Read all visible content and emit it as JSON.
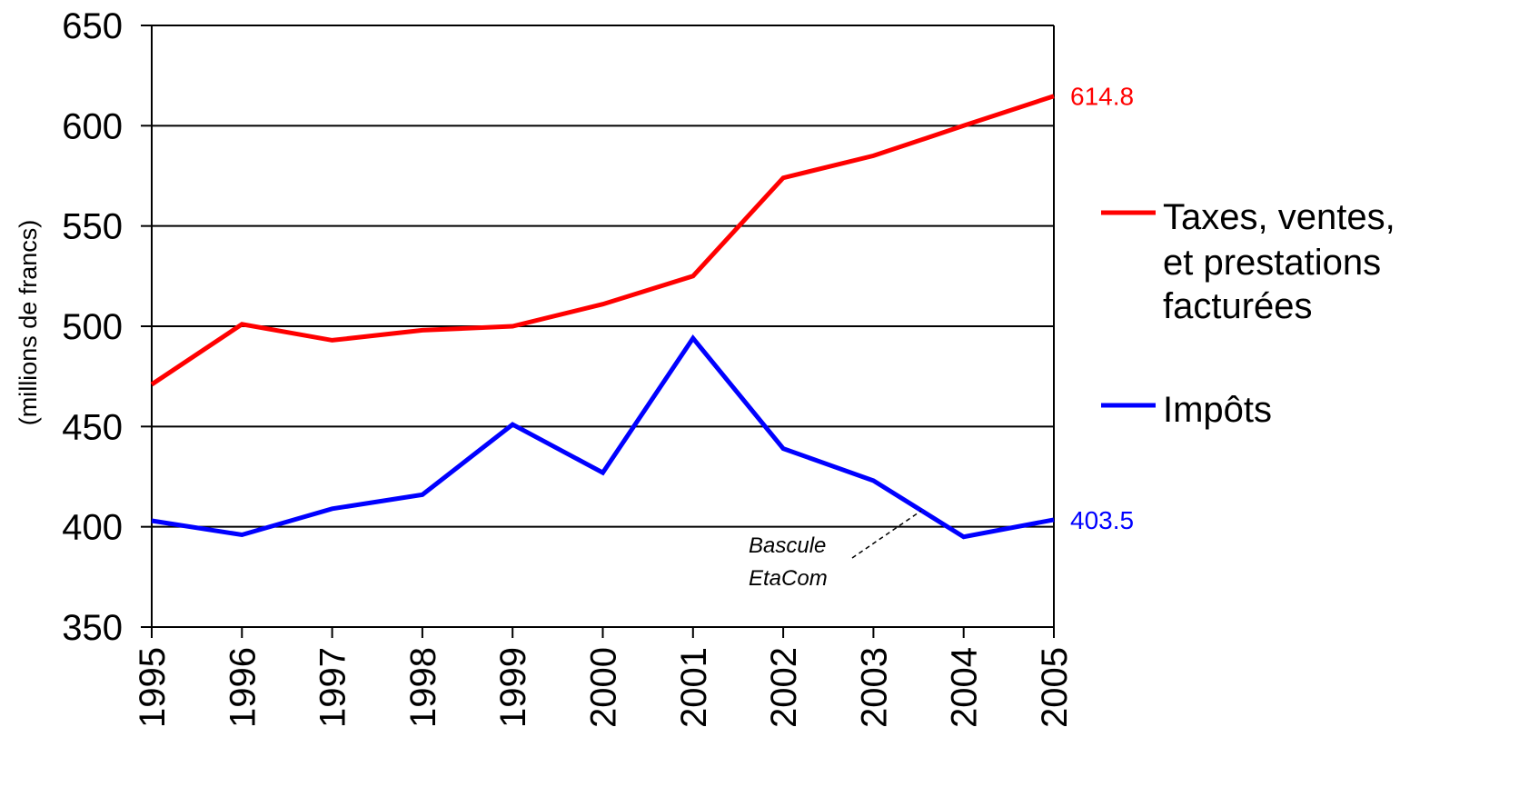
{
  "chart_data": {
    "type": "line",
    "x": [
      "1995",
      "1996",
      "1997",
      "1998",
      "1999",
      "2000",
      "2001",
      "2002",
      "2003",
      "2004",
      "2005"
    ],
    "ylabel": "(millions de francs)",
    "ylim": [
      350,
      650
    ],
    "yticks": [
      350,
      400,
      450,
      500,
      550,
      600,
      650
    ],
    "grid": true,
    "legend_position": "right",
    "series": [
      {
        "name": [
          "Taxes, ventes,",
          "et prestations",
          "facturées"
        ],
        "color": "#ff0000",
        "values": [
          471,
          501,
          493,
          498,
          500,
          511,
          525,
          574,
          585,
          600,
          614.8
        ],
        "end_label": "614.8"
      },
      {
        "name": [
          "Impôts"
        ],
        "color": "#0000ff",
        "values": [
          403,
          396,
          409,
          416,
          451,
          427,
          494,
          439,
          423,
          395,
          403.5
        ],
        "end_label": "403.5"
      }
    ],
    "annotations": [
      {
        "lines": [
          "Bascule",
          "EtaCom"
        ],
        "points_to_x": "2003.6"
      }
    ]
  }
}
